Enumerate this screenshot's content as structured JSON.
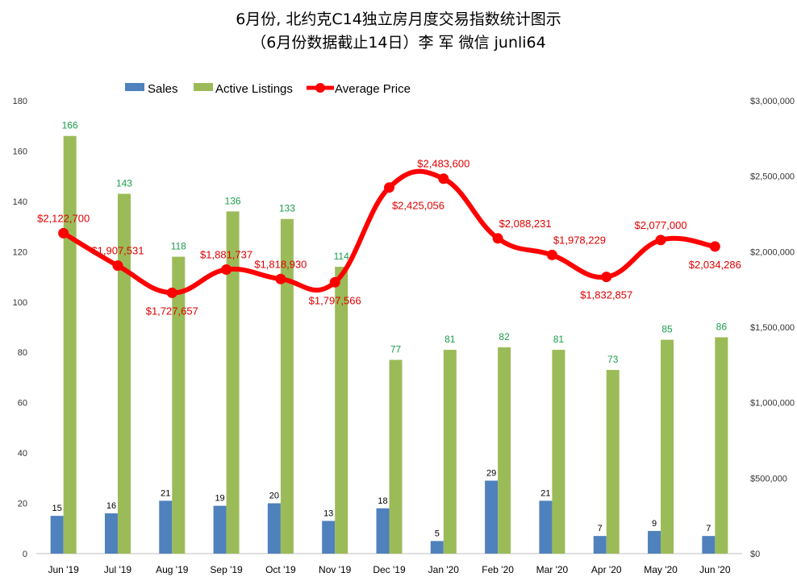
{
  "chart_data": {
    "type": "bar",
    "title_line1": "6月份, 北约克C14独立房月度交易指数统计图示",
    "title_line2": "（6月份数据截止14日）李 军  微信  junli64",
    "categories": [
      "Jun '19",
      "Jul '19",
      "Aug '19",
      "Sep '19",
      "Oct '19",
      "Nov '19",
      "Dec '19",
      "Jan '20",
      "Feb '20",
      "Mar '20",
      "Apr '20",
      "May '20",
      "Jun '20"
    ],
    "series": [
      {
        "name": "Sales",
        "type": "bar",
        "axis": "left",
        "color": "#4f81bd",
        "values": [
          15,
          16,
          21,
          19,
          20,
          13,
          18,
          5,
          29,
          21,
          7,
          9,
          7
        ]
      },
      {
        "name": "Active Listings",
        "type": "bar",
        "axis": "left",
        "color": "#9bbb59",
        "values": [
          166,
          143,
          118,
          136,
          133,
          114,
          77,
          81,
          82,
          81,
          73,
          85,
          86
        ]
      },
      {
        "name": "Average Price",
        "type": "line",
        "axis": "right",
        "color": "#ff0000",
        "values": [
          2122700,
          1907531,
          1727657,
          1881737,
          1818930,
          1797566,
          2425056,
          2483600,
          2088231,
          1978229,
          1832857,
          2077000,
          2034286
        ],
        "labels": [
          "$2,122,700",
          "$1,907,531",
          "$1,727,657",
          "$1,881,737",
          "$1,818,930",
          "$1,797,566",
          "$2,425,056",
          "$2,483,600",
          "$2,088,231",
          "$1,978,229",
          "$1,832,857",
          "$2,077,000",
          "$2,034,286"
        ]
      }
    ],
    "left_axis": {
      "ylim": [
        0,
        180
      ],
      "ticks": [
        "0",
        "20",
        "40",
        "60",
        "80",
        "100",
        "120",
        "140",
        "160",
        "180"
      ]
    },
    "right_axis": {
      "ylim": [
        0,
        3000000
      ],
      "ticks": [
        "$0",
        "$500,000",
        "$1,000,000",
        "$1,500,000",
        "$2,000,000",
        "$2,500,000",
        "$3,000,000"
      ]
    },
    "legend": {
      "position": "top",
      "entries": [
        "Sales",
        "Active Listings",
        "Average Price"
      ]
    },
    "grid": false
  }
}
